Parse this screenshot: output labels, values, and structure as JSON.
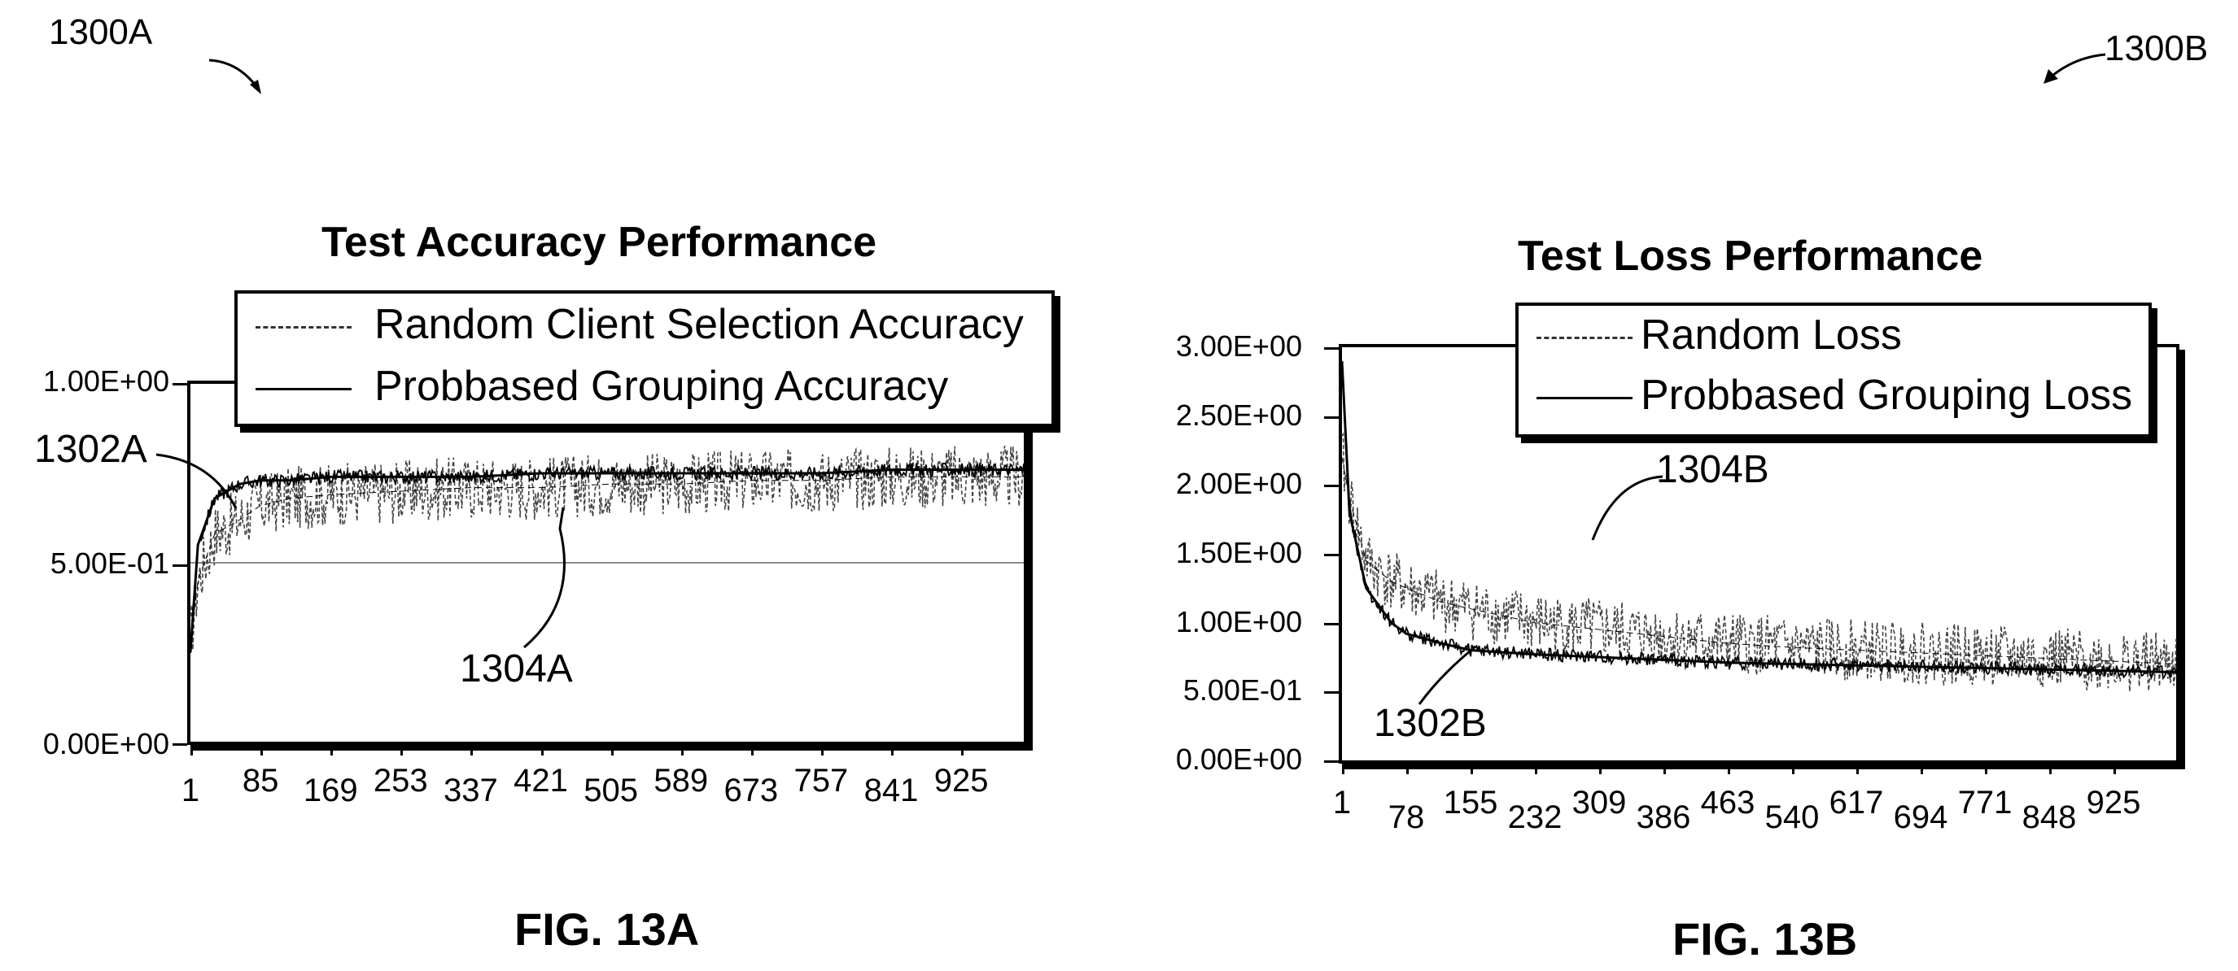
{
  "labels": {
    "ref_a": "1300A",
    "ref_b": "1300B",
    "fig_a": "FIG. 13A",
    "fig_b": "FIG. 13B"
  },
  "chart_data": [
    {
      "type": "line",
      "title": "Test Accuracy Performance",
      "xlabel": "",
      "ylabel": "",
      "ylim": [
        0,
        1
      ],
      "y_ticks": [
        "1.00E+00",
        "5.00E-01",
        "0.00E+00"
      ],
      "y_tick_values": [
        1.0,
        0.5,
        0.0
      ],
      "x_ticks": [
        "1",
        "85",
        "169",
        "253",
        "337",
        "421",
        "505",
        "589",
        "673",
        "757",
        "841",
        "925"
      ],
      "xlim": [
        1,
        1000
      ],
      "grid": false,
      "legend_position": "top-right",
      "series": [
        {
          "name": "Random Client Selection Accuracy",
          "style": "dashed",
          "x": [
            1,
            10,
            30,
            60,
            85,
            120,
            169,
            253,
            337,
            421,
            505,
            589,
            673,
            757,
            841,
            925,
            1000
          ],
          "values": [
            0.28,
            0.45,
            0.58,
            0.62,
            0.66,
            0.68,
            0.69,
            0.7,
            0.71,
            0.71,
            0.72,
            0.72,
            0.73,
            0.73,
            0.74,
            0.74,
            0.74
          ]
        },
        {
          "name": "Probbased Grouping Accuracy",
          "style": "solid",
          "x": [
            1,
            10,
            30,
            60,
            85,
            120,
            169,
            253,
            337,
            421,
            505,
            589,
            673,
            757,
            841,
            925,
            1000
          ],
          "values": [
            0.25,
            0.55,
            0.68,
            0.72,
            0.73,
            0.73,
            0.74,
            0.74,
            0.74,
            0.75,
            0.75,
            0.75,
            0.75,
            0.75,
            0.76,
            0.76,
            0.76
          ]
        }
      ],
      "annotations": [
        {
          "text": "1302A",
          "target_series": "Probbased Grouping Accuracy"
        },
        {
          "text": "1304A",
          "target_series": "Random Client Selection Accuracy"
        }
      ]
    },
    {
      "type": "line",
      "title": "Test Loss Performance",
      "xlabel": "",
      "ylabel": "",
      "ylim": [
        0,
        3
      ],
      "y_ticks": [
        "3.00E+00",
        "2.50E+00",
        "2.00E+00",
        "1.50E+00",
        "1.00E+00",
        "5.00E-01",
        "0.00E+00"
      ],
      "y_tick_values": [
        3.0,
        2.5,
        2.0,
        1.5,
        1.0,
        0.5,
        0.0
      ],
      "x_ticks": [
        "1",
        "78",
        "155",
        "232",
        "309",
        "386",
        "463",
        "540",
        "617",
        "694",
        "771",
        "848",
        "925"
      ],
      "xlim": [
        1,
        1000
      ],
      "grid": false,
      "legend_position": "top-right",
      "series": [
        {
          "name": "Random Loss",
          "style": "dashed",
          "x": [
            1,
            10,
            30,
            60,
            78,
            120,
            155,
            232,
            309,
            386,
            463,
            540,
            617,
            694,
            771,
            848,
            925,
            1000
          ],
          "values": [
            2.2,
            1.9,
            1.45,
            1.3,
            1.25,
            1.15,
            1.1,
            1.0,
            0.95,
            0.9,
            0.85,
            0.82,
            0.8,
            0.78,
            0.76,
            0.74,
            0.72,
            0.7
          ]
        },
        {
          "name": "Probbased Grouping Loss",
          "style": "solid",
          "x": [
            1,
            10,
            30,
            60,
            78,
            120,
            155,
            232,
            309,
            386,
            463,
            540,
            617,
            694,
            771,
            848,
            925,
            1000
          ],
          "values": [
            2.9,
            1.8,
            1.25,
            1.0,
            0.92,
            0.85,
            0.8,
            0.77,
            0.75,
            0.73,
            0.71,
            0.7,
            0.69,
            0.68,
            0.67,
            0.66,
            0.65,
            0.64
          ]
        }
      ],
      "annotations": [
        {
          "text": "1302B",
          "target_series": "Probbased Grouping Loss"
        },
        {
          "text": "1304B",
          "target_series": "Random Loss"
        }
      ]
    }
  ]
}
